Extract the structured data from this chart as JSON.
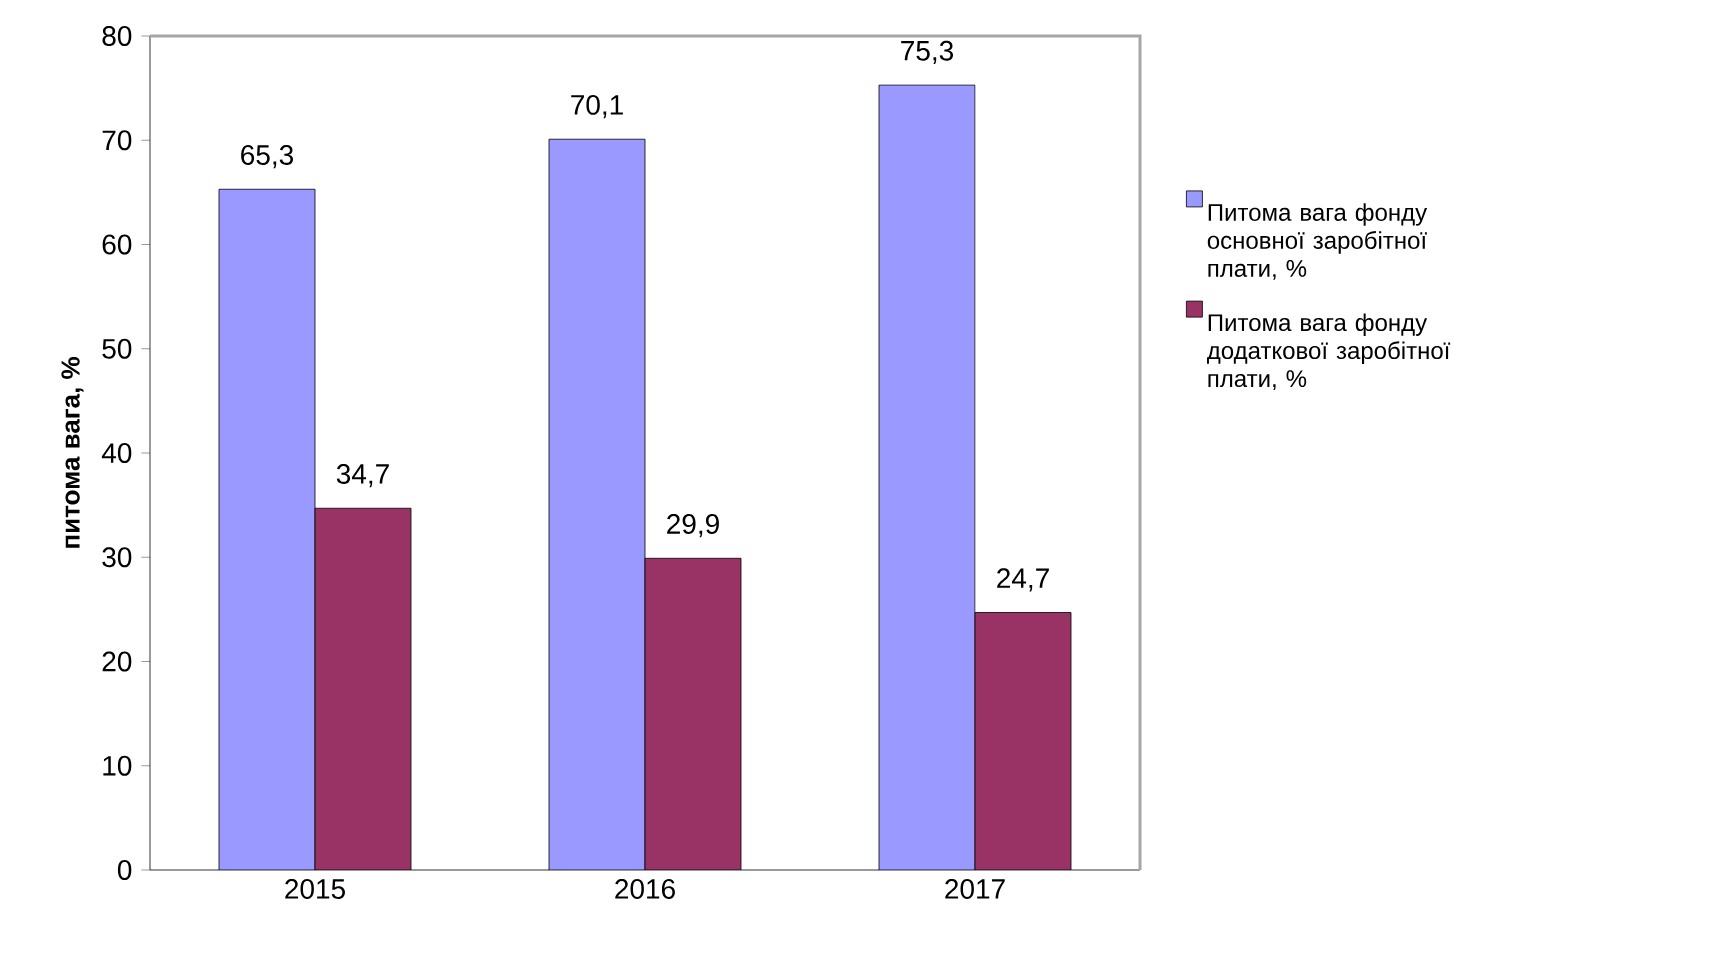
{
  "chart_data": {
    "type": "bar",
    "ylabel": "питома вага, %",
    "categories": [
      "2015",
      "2016",
      "2017"
    ],
    "series": [
      {
        "name": "Питома вага фонду основної заробітної плати, %",
        "color": "#9999ff",
        "values": [
          65.3,
          70.1,
          75.3
        ],
        "value_labels": [
          "65,3",
          "70,1",
          "75,3"
        ]
      },
      {
        "name": "Питома вага фонду додаткової заробітної плати, %",
        "color": "#993366",
        "values": [
          34.7,
          29.9,
          24.7
        ],
        "value_labels": [
          "34,7",
          "29,9",
          "24,7"
        ]
      }
    ],
    "ylim": [
      0,
      80
    ],
    "yticks": [
      0,
      10,
      20,
      30,
      40,
      50,
      60,
      70,
      80
    ],
    "legend": "right"
  }
}
